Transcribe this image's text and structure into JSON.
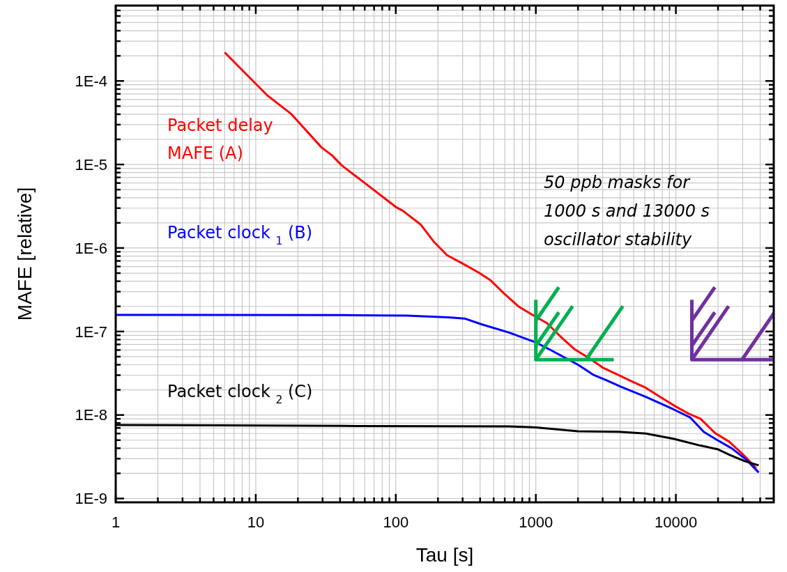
{
  "chart_data": {
    "type": "line",
    "xlabel": "Tau [s]",
    "ylabel": "MAFE [relative]",
    "log": "xy",
    "grid": true,
    "xlim": [
      1,
      50000
    ],
    "ylim": [
      9e-10,
      0.0008
    ],
    "xticks": [
      1,
      {
        "value": 2,
        "label": null
      },
      {
        "value": 3,
        "label": null
      },
      {
        "value": 4,
        "label": null
      },
      {
        "value": 5,
        "label": null
      },
      {
        "value": 6,
        "label": null
      },
      {
        "value": 7,
        "label": null
      },
      {
        "value": 8,
        "label": null
      },
      {
        "value": 9,
        "label": null
      },
      10,
      {
        "value": 20,
        "label": null
      },
      {
        "value": 30,
        "label": null
      },
      {
        "value": 40,
        "label": null
      },
      {
        "value": 50,
        "label": null
      },
      {
        "value": 60,
        "label": null
      },
      {
        "value": 70,
        "label": null
      },
      {
        "value": 80,
        "label": null
      },
      {
        "value": 90,
        "label": null
      },
      100,
      {
        "value": 200,
        "label": null
      },
      {
        "value": 300,
        "label": null
      },
      {
        "value": 400,
        "label": null
      },
      {
        "value": 500,
        "label": null
      },
      {
        "value": 600,
        "label": null
      },
      {
        "value": 700,
        "label": null
      },
      {
        "value": 800,
        "label": null
      },
      {
        "value": 900,
        "label": null
      },
      1000,
      {
        "value": 2000,
        "label": null
      },
      {
        "value": 3000,
        "label": null
      },
      {
        "value": 4000,
        "label": null
      },
      {
        "value": 5000,
        "label": null
      },
      {
        "value": 6000,
        "label": null
      },
      {
        "value": 7000,
        "label": null
      },
      {
        "value": 8000,
        "label": null
      },
      {
        "value": 9000,
        "label": null
      },
      10000,
      {
        "value": 20000,
        "label": null
      },
      {
        "value": 30000,
        "label": null
      },
      {
        "value": 40000,
        "label": null
      }
    ],
    "yticks": [
      {
        "value": 1e-09,
        "label": "1E-9"
      },
      {
        "value": 2e-09,
        "label": null
      },
      {
        "value": 3e-09,
        "label": null
      },
      {
        "value": 4e-09,
        "label": null
      },
      {
        "value": 5e-09,
        "label": null
      },
      {
        "value": 6e-09,
        "label": null
      },
      {
        "value": 7e-09,
        "label": null
      },
      {
        "value": 8e-09,
        "label": null
      },
      {
        "value": 9e-09,
        "label": null
      },
      {
        "value": 1e-08,
        "label": "1E-8"
      },
      {
        "value": 2e-08,
        "label": null
      },
      {
        "value": 3e-08,
        "label": null
      },
      {
        "value": 4e-08,
        "label": null
      },
      {
        "value": 5e-08,
        "label": null
      },
      {
        "value": 6e-08,
        "label": null
      },
      {
        "value": 7e-08,
        "label": null
      },
      {
        "value": 8e-08,
        "label": null
      },
      {
        "value": 9e-08,
        "label": null
      },
      {
        "value": 1e-07,
        "label": "1E-7"
      },
      {
        "value": 2e-07,
        "label": null
      },
      {
        "value": 3e-07,
        "label": null
      },
      {
        "value": 4e-07,
        "label": null
      },
      {
        "value": 5e-07,
        "label": null
      },
      {
        "value": 6e-07,
        "label": null
      },
      {
        "value": 7e-07,
        "label": null
      },
      {
        "value": 8e-07,
        "label": null
      },
      {
        "value": 9e-07,
        "label": null
      },
      {
        "value": 1e-06,
        "label": "1E-6"
      },
      {
        "value": 2e-06,
        "label": null
      },
      {
        "value": 3e-06,
        "label": null
      },
      {
        "value": 4e-06,
        "label": null
      },
      {
        "value": 5e-06,
        "label": null
      },
      {
        "value": 6e-06,
        "label": null
      },
      {
        "value": 7e-06,
        "label": null
      },
      {
        "value": 8e-06,
        "label": null
      },
      {
        "value": 9e-06,
        "label": null
      },
      {
        "value": 1e-05,
        "label": "1E-5"
      },
      {
        "value": 2e-05,
        "label": null
      },
      {
        "value": 3e-05,
        "label": null
      },
      {
        "value": 4e-05,
        "label": null
      },
      {
        "value": 5e-05,
        "label": null
      },
      {
        "value": 6e-05,
        "label": null
      },
      {
        "value": 7e-05,
        "label": null
      },
      {
        "value": 8e-05,
        "label": null
      },
      {
        "value": 9e-05,
        "label": null
      },
      {
        "value": 0.0001,
        "label": "1E-4"
      },
      {
        "value": 0.0002,
        "label": null
      },
      {
        "value": 0.0003,
        "label": null
      },
      {
        "value": 0.0004,
        "label": null
      },
      {
        "value": 0.0005,
        "label": null
      },
      {
        "value": 0.0006,
        "label": null
      },
      {
        "value": 0.0007,
        "label": null
      }
    ],
    "series": [
      {
        "name": "Packet delay\nMAFE (A)",
        "color": "#ff0000",
        "x": [
          6,
          12,
          18,
          29.5,
          35,
          41,
          60,
          100,
          112,
          151,
          186,
          232,
          296,
          389,
          475,
          600,
          750,
          1000,
          1200,
          1500,
          1900,
          2400,
          3000,
          3900,
          4900,
          6000,
          7700,
          10000,
          12300,
          15000,
          19000,
          24000,
          30000,
          37500
        ],
        "values": [
          0.00022,
          6.8e-05,
          4e-05,
          1.6e-05,
          1.29e-05,
          9.8e-06,
          6e-06,
          3.1e-06,
          2.8e-06,
          1.9e-06,
          1.2e-06,
          8.2e-07,
          6.6e-07,
          5.1e-07,
          4.1e-07,
          2.8e-07,
          2e-07,
          1.5e-07,
          1.26e-07,
          8.7e-08,
          6.1e-08,
          4.8e-08,
          3.7e-08,
          3e-08,
          2.5e-08,
          2.15e-08,
          1.65e-08,
          1.26e-08,
          1.04e-08,
          9e-09,
          6.1e-09,
          4.8e-09,
          3.4e-09,
          2.3e-09
        ]
      },
      {
        "name": "Packet clock $_{1}$ (B)",
        "color": "#0000ff",
        "x": [
          1,
          43,
          120,
          237,
          310,
          410,
          645,
          1000,
          1300,
          2000,
          2600,
          3200,
          4000,
          6100,
          9600,
          12700,
          15800,
          19800,
          25000,
          32000,
          39000
        ],
        "values": [
          1.58e-07,
          1.57e-07,
          1.55e-07,
          1.48e-07,
          1.43e-07,
          1.22e-07,
          9.7e-08,
          7.4e-08,
          5.9e-08,
          4e-08,
          3e-08,
          2.6e-08,
          2.2e-08,
          1.65e-08,
          1.17e-08,
          9.3e-09,
          6.3e-09,
          5e-09,
          4e-09,
          2.9e-09,
          2.05e-09
        ]
      },
      {
        "name": "Packet clock $_{2}$ (C)",
        "color": "#000000",
        "x": [
          1,
          43,
          645,
          1000,
          2000,
          3900,
          6100,
          9600,
          15000,
          19800,
          24500,
          31000,
          39000
        ],
        "values": [
          7.6e-09,
          7.4e-09,
          7.3e-09,
          7.1e-09,
          6.4e-09,
          6.3e-09,
          6e-09,
          5.2e-09,
          4.3e-09,
          3.9e-09,
          3.3e-09,
          2.8e-09,
          2.5e-09
        ]
      },
      {
        "color": "#00b050",
        "x": [
          1000,
          1000,
          3600
        ],
        "values": [
          2.4e-07,
          4.6e-08,
          4.6e-08
        ]
      },
      {
        "color": "#7030a0",
        "x": [
          13000,
          13000,
          50000
        ],
        "values": [
          2.4e-07,
          4.6e-08,
          4.6e-08
        ]
      }
    ],
    "annotations": [
      "50 ppb masks for\n1000 s and 13000 s\noscillator stability"
    ]
  }
}
